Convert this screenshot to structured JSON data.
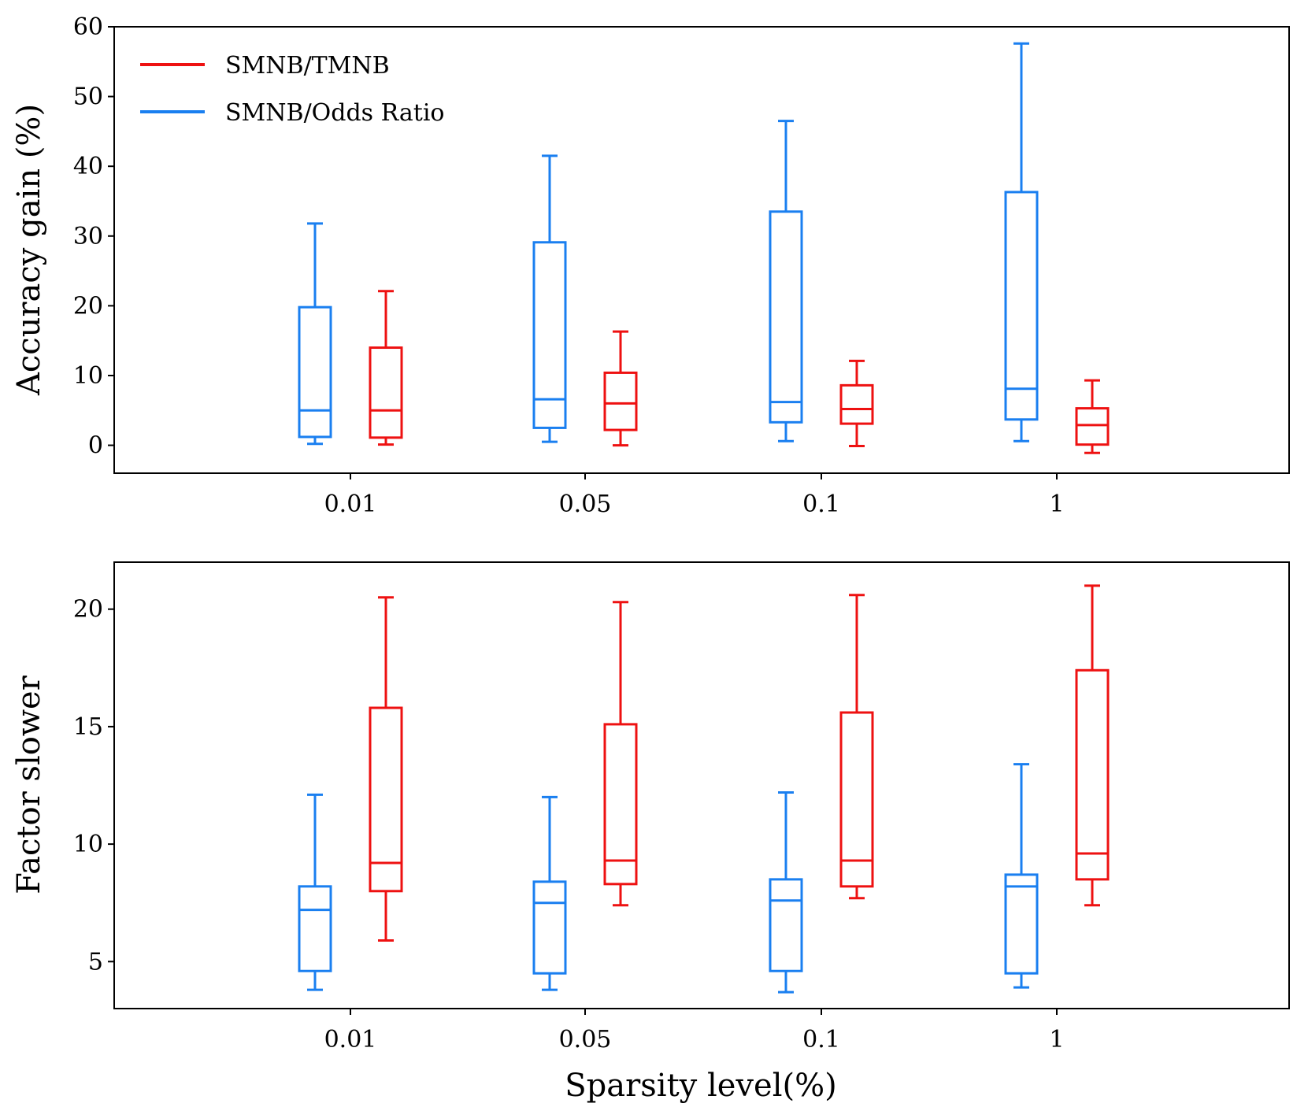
{
  "chart_data": [
    {
      "type": "box",
      "title": "",
      "xlabel": "",
      "ylabel": "Accuracy gain (%)",
      "ylim": [
        -4,
        60
      ],
      "yticks": [
        0,
        10,
        20,
        30,
        40,
        50,
        60
      ],
      "categories": [
        "0.01",
        "0.05",
        "0.1",
        "1"
      ],
      "legend": {
        "position": "top-left",
        "entries": [
          "SMNB/TMNB",
          "SMNB/Odds Ratio"
        ]
      },
      "series": [
        {
          "name": "SMNB/Odds Ratio",
          "color": "#1a7ff0",
          "boxes": [
            {
              "whislo": 0.2,
              "q1": 1.2,
              "med": 5.0,
              "q3": 19.8,
              "whishi": 31.8
            },
            {
              "whislo": 0.5,
              "q1": 2.5,
              "med": 6.6,
              "q3": 29.1,
              "whishi": 41.5
            },
            {
              "whislo": 0.6,
              "q1": 3.3,
              "med": 6.2,
              "q3": 33.5,
              "whishi": 46.5
            },
            {
              "whislo": 0.6,
              "q1": 3.7,
              "med": 8.1,
              "q3": 36.3,
              "whishi": 57.6
            }
          ]
        },
        {
          "name": "SMNB/TMNB",
          "color": "#ee1111",
          "boxes": [
            {
              "whislo": 0.1,
              "q1": 1.1,
              "med": 5.0,
              "q3": 14.0,
              "whishi": 22.1
            },
            {
              "whislo": 0.0,
              "q1": 2.2,
              "med": 6.0,
              "q3": 10.4,
              "whishi": 16.3
            },
            {
              "whislo": -0.1,
              "q1": 3.1,
              "med": 5.2,
              "q3": 8.6,
              "whishi": 12.1
            },
            {
              "whislo": -1.1,
              "q1": 0.1,
              "med": 2.9,
              "q3": 5.3,
              "whishi": 9.3
            }
          ]
        }
      ]
    },
    {
      "type": "box",
      "title": "",
      "xlabel": "Sparsity level(%)",
      "ylabel": "Factor slower",
      "ylim": [
        3,
        22
      ],
      "yticks": [
        5,
        10,
        15,
        20
      ],
      "categories": [
        "0.01",
        "0.05",
        "0.1",
        "1"
      ],
      "series": [
        {
          "name": "SMNB/Odds Ratio",
          "color": "#1a7ff0",
          "boxes": [
            {
              "whislo": 3.8,
              "q1": 4.6,
              "med": 7.2,
              "q3": 8.2,
              "whishi": 12.1
            },
            {
              "whislo": 3.8,
              "q1": 4.5,
              "med": 7.5,
              "q3": 8.4,
              "whishi": 12.0
            },
            {
              "whislo": 3.7,
              "q1": 4.6,
              "med": 7.6,
              "q3": 8.5,
              "whishi": 12.2
            },
            {
              "whislo": 3.9,
              "q1": 4.5,
              "med": 8.2,
              "q3": 8.7,
              "whishi": 13.4
            }
          ]
        },
        {
          "name": "SMNB/TMNB",
          "color": "#ee1111",
          "boxes": [
            {
              "whislo": 5.9,
              "q1": 8.0,
              "med": 9.2,
              "q3": 15.8,
              "whishi": 20.5
            },
            {
              "whislo": 7.4,
              "q1": 8.3,
              "med": 9.3,
              "q3": 15.1,
              "whishi": 20.3
            },
            {
              "whislo": 7.7,
              "q1": 8.2,
              "med": 9.3,
              "q3": 15.6,
              "whishi": 20.6
            },
            {
              "whislo": 7.4,
              "q1": 8.5,
              "med": 9.6,
              "q3": 17.4,
              "whishi": 21.0
            }
          ]
        }
      ]
    }
  ]
}
